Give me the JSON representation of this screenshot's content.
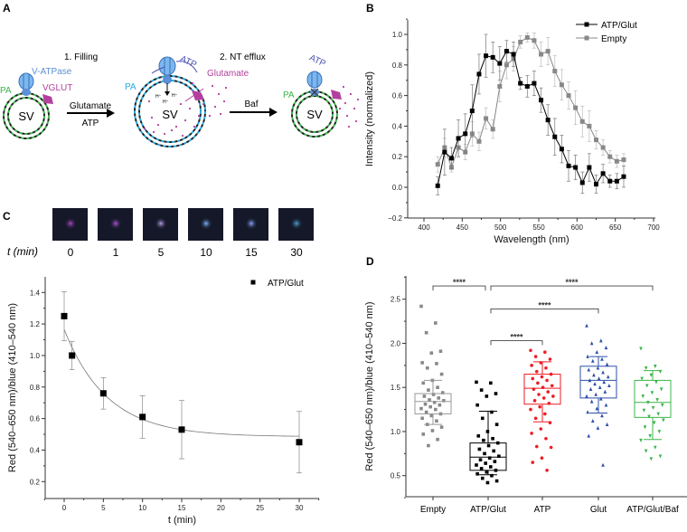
{
  "panel_labels": {
    "a": "A",
    "b": "B",
    "c": "C",
    "d": "D"
  },
  "diagram": {
    "step1": "1. Filling",
    "step2": "2. NT efflux",
    "v_atpase": "V-ATPase",
    "vglut": "VGLUT",
    "pa": "PA",
    "sv": "SV",
    "arrow1_top": "Glutamate",
    "arrow1_bottom": "ATP",
    "atp": "ATP",
    "glutamate": "Glutamate",
    "proton": "H⁺",
    "arrow2_top": "Baf",
    "colors": {
      "vatpase": "#5b8fd6",
      "vglut": "#b3409e",
      "pa_green": "#3cb54a",
      "pa_cyan": "#27aae1",
      "atp": "#4b4fae"
    }
  },
  "thumbnails": {
    "axis_label": "t (min)",
    "times": [
      "0",
      "1",
      "5",
      "10",
      "15",
      "30"
    ],
    "colors": [
      "#b04ac8",
      "#b055d8",
      "#b9a2ee",
      "#7fb8ff",
      "#8aa8ff",
      "#4aa8d8"
    ]
  },
  "chart_data": [
    {
      "id": "B",
      "type": "line",
      "xlabel": "Wavelength (nm)",
      "ylabel": "Intensity (normalized)",
      "xlim": [
        400,
        700
      ],
      "ylim": [
        -0.2,
        1.0
      ],
      "xticks": [
        "400",
        "450",
        "500",
        "550",
        "600",
        "650",
        "700"
      ],
      "yticks": [
        "−0.2",
        "0.0",
        "0.2",
        "0.4",
        "0.6",
        "0.8",
        "1.0"
      ],
      "legend_position": "top-right",
      "x": [
        418,
        427,
        436,
        445,
        454,
        463,
        472,
        481,
        490,
        499,
        508,
        517,
        526,
        535,
        544,
        553,
        562,
        571,
        580,
        589,
        598,
        607,
        616,
        625,
        634,
        643,
        652,
        661
      ],
      "series": [
        {
          "name": "ATP/Glut",
          "color": "#000000",
          "values": [
            0.01,
            0.23,
            0.19,
            0.32,
            0.35,
            0.5,
            0.74,
            0.86,
            0.85,
            0.81,
            0.89,
            0.87,
            0.68,
            0.66,
            0.68,
            0.57,
            0.44,
            0.33,
            0.25,
            0.14,
            0.13,
            0.03,
            0.13,
            0.02,
            0.09,
            0.04,
            0.04,
            0.07
          ],
          "errors": [
            0.06,
            0.15,
            0.07,
            0.12,
            0.13,
            0.17,
            0.13,
            0.14,
            0.1,
            0.11,
            0.07,
            0.08,
            0.04,
            0.07,
            0.08,
            0.08,
            0.1,
            0.12,
            0.09,
            0.1,
            0.08,
            0.07,
            0.09,
            0.06,
            0.06,
            0.04,
            0.05,
            0.07
          ]
        },
        {
          "name": "Empty",
          "color": "#888888",
          "values": [
            0.15,
            0.26,
            0.13,
            0.26,
            0.23,
            0.35,
            0.3,
            0.45,
            0.38,
            0.66,
            0.8,
            0.84,
            0.95,
            0.98,
            0.96,
            0.87,
            0.89,
            0.76,
            0.67,
            0.6,
            0.52,
            0.43,
            0.4,
            0.31,
            0.26,
            0.2,
            0.17,
            0.18
          ],
          "errors": [
            0.05,
            0.06,
            0.03,
            0.06,
            0.05,
            0.08,
            0.06,
            0.07,
            0.06,
            0.1,
            0.09,
            0.08,
            0.04,
            0.03,
            0.05,
            0.08,
            0.09,
            0.1,
            0.1,
            0.09,
            0.11,
            0.1,
            0.1,
            0.06,
            0.05,
            0.04,
            0.04,
            0.04
          ]
        }
      ]
    },
    {
      "id": "C",
      "type": "scatter",
      "xlabel": "t (min)",
      "ylabel": "Red (540–650 nm)/blue (410–540 nm)",
      "xlim": [
        -2.5,
        32.5
      ],
      "ylim": [
        0.1,
        1.5
      ],
      "xticks": [
        "0",
        "5",
        "10",
        "15",
        "20",
        "25",
        "30"
      ],
      "yticks": [
        "0.2",
        "0.4",
        "0.6",
        "0.8",
        "1.0",
        "1.2",
        "1.4"
      ],
      "legend_position": "top-right",
      "series": [
        {
          "name": "ATP/Glut",
          "color": "#000000",
          "x": [
            0,
            1,
            5,
            10,
            15,
            30
          ],
          "values": [
            1.25,
            1.0,
            0.76,
            0.61,
            0.53,
            0.45
          ],
          "errors": [
            0.155,
            0.09,
            0.1,
            0.135,
            0.185,
            0.195
          ]
        }
      ],
      "fit": {
        "type": "exponential decay",
        "y0": 0.485,
        "A": 0.68,
        "tau": 5.5
      }
    },
    {
      "id": "D",
      "type": "box",
      "ylabel": "Red (540–650 nm)/blue (410–540 nm)",
      "ylim": [
        0.25,
        2.75
      ],
      "yticks": [
        "0.5",
        "1.0",
        "1.5",
        "2.0",
        "2.5"
      ],
      "significance": "****",
      "comparisons": [
        {
          "from": 0,
          "to": 1,
          "level": 2.65,
          "label": "****"
        },
        {
          "from": 1,
          "to": 4,
          "level": 2.65,
          "label": "****"
        },
        {
          "from": 1,
          "to": 3,
          "level": 2.39,
          "label": "****"
        },
        {
          "from": 1,
          "to": 2,
          "level": 2.03,
          "label": "****"
        }
      ],
      "groups": [
        {
          "name": "Empty",
          "color": "#888888",
          "marker": "square",
          "q1": 1.2,
          "median": 1.34,
          "q3": 1.43,
          "wlo": 1.08,
          "whi": 1.58,
          "points": [
            2.42,
            2.23,
            2.12,
            1.91,
            1.89,
            1.78,
            1.77,
            1.72,
            1.65,
            1.58,
            1.55,
            1.5,
            1.47,
            1.44,
            1.42,
            1.4,
            1.38,
            1.36,
            1.35,
            1.33,
            1.31,
            1.3,
            1.28,
            1.26,
            1.25,
            1.22,
            1.2,
            1.18,
            1.15,
            1.12,
            1.08,
            1.05,
            1.01,
            0.97,
            0.91,
            0.84
          ]
        },
        {
          "name": "ATP/Glut",
          "color": "#000000",
          "marker": "square",
          "q1": 0.56,
          "median": 0.71,
          "q3": 0.87,
          "wlo": 0.51,
          "whi": 1.23,
          "points": [
            1.56,
            1.55,
            1.47,
            1.43,
            1.4,
            1.3,
            1.22,
            1.15,
            1.08,
            1.0,
            0.95,
            0.92,
            0.9,
            0.87,
            0.84,
            0.8,
            0.78,
            0.75,
            0.72,
            0.7,
            0.68,
            0.66,
            0.64,
            0.62,
            0.6,
            0.58,
            0.56,
            0.54,
            0.52,
            0.5,
            0.47,
            0.44,
            0.42
          ]
        },
        {
          "name": "ATP",
          "color": "#ee1c25",
          "marker": "circle",
          "q1": 1.31,
          "median": 1.49,
          "q3": 1.65,
          "wlo": 1.11,
          "whi": 1.79,
          "points": [
            1.92,
            1.9,
            1.85,
            1.82,
            1.78,
            1.75,
            1.72,
            1.68,
            1.65,
            1.62,
            1.6,
            1.58,
            1.55,
            1.52,
            1.5,
            1.48,
            1.45,
            1.42,
            1.4,
            1.38,
            1.35,
            1.32,
            1.28,
            1.25,
            1.2,
            1.15,
            1.1,
            1.03,
            0.98,
            0.92,
            0.83,
            0.82,
            0.7,
            0.65,
            0.56
          ]
        },
        {
          "name": "Glut",
          "color": "#2e4fa8",
          "marker": "triangle-up",
          "q1": 1.38,
          "median": 1.58,
          "q3": 1.74,
          "wlo": 1.21,
          "whi": 1.85,
          "points": [
            2.2,
            2.03,
            2.0,
            1.95,
            1.9,
            1.85,
            1.82,
            1.8,
            1.76,
            1.72,
            1.7,
            1.67,
            1.64,
            1.62,
            1.6,
            1.58,
            1.56,
            1.54,
            1.52,
            1.5,
            1.48,
            1.45,
            1.42,
            1.4,
            1.37,
            1.34,
            1.3,
            1.26,
            1.22,
            1.18,
            1.12,
            1.08,
            1.04,
            0.95,
            0.62
          ]
        },
        {
          "name": "ATP/Glut/Baf",
          "color": "#3cb54a",
          "marker": "triangle-down",
          "q1": 1.16,
          "median": 1.33,
          "q3": 1.58,
          "wlo": 0.91,
          "whi": 1.69,
          "points": [
            1.94,
            1.74,
            1.72,
            1.68,
            1.64,
            1.6,
            1.56,
            1.52,
            1.48,
            1.44,
            1.4,
            1.36,
            1.33,
            1.3,
            1.27,
            1.24,
            1.2,
            1.17,
            1.13,
            1.1,
            1.05,
            1.0,
            0.95,
            0.9,
            0.82,
            0.78,
            0.72,
            0.69
          ]
        }
      ]
    }
  ]
}
